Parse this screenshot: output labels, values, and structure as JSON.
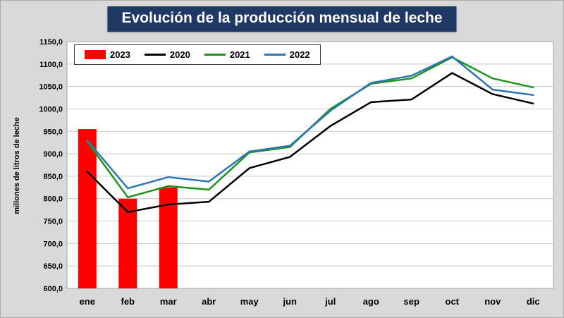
{
  "title": "Evolución de la producción mensual de leche",
  "y_axis_label": "millones de litros de leche",
  "chart_data": {
    "type": "bar+line",
    "title": "Evolución de la producción mensual de leche",
    "ylabel": "millones de litros de leche",
    "xlabel": "",
    "grid": true,
    "legend_position": "top-left",
    "ylim": [
      600,
      1150
    ],
    "ytick_step": 50,
    "ytick_labels": [
      "600,0",
      "650,0",
      "700,0",
      "750,0",
      "800,0",
      "850,0",
      "900,0",
      "950,0",
      "1000,0",
      "1050,0",
      "1100,0",
      "1150,0"
    ],
    "categories": [
      "ene",
      "feb",
      "mar",
      "abr",
      "may",
      "jun",
      "jul",
      "ago",
      "sep",
      "oct",
      "nov",
      "dic"
    ],
    "series": [
      {
        "name": "2023",
        "type": "bar",
        "color": "#ff0000",
        "values": [
          955,
          800,
          825,
          null,
          null,
          null,
          null,
          null,
          null,
          null,
          null,
          null
        ]
      },
      {
        "name": "2020",
        "type": "line",
        "color": "#000000",
        "values": [
          860,
          770,
          787,
          793,
          868,
          893,
          962,
          1015,
          1021,
          1080,
          1033,
          1012
        ]
      },
      {
        "name": "2021",
        "type": "line",
        "color": "#1c941c",
        "values": [
          927,
          803,
          828,
          820,
          903,
          915,
          1000,
          1056,
          1068,
          1115,
          1068,
          1048
        ]
      },
      {
        "name": "2022",
        "type": "line",
        "color": "#2e75b6",
        "values": [
          930,
          823,
          848,
          838,
          905,
          918,
          996,
          1058,
          1074,
          1117,
          1043,
          1031
        ]
      }
    ]
  }
}
